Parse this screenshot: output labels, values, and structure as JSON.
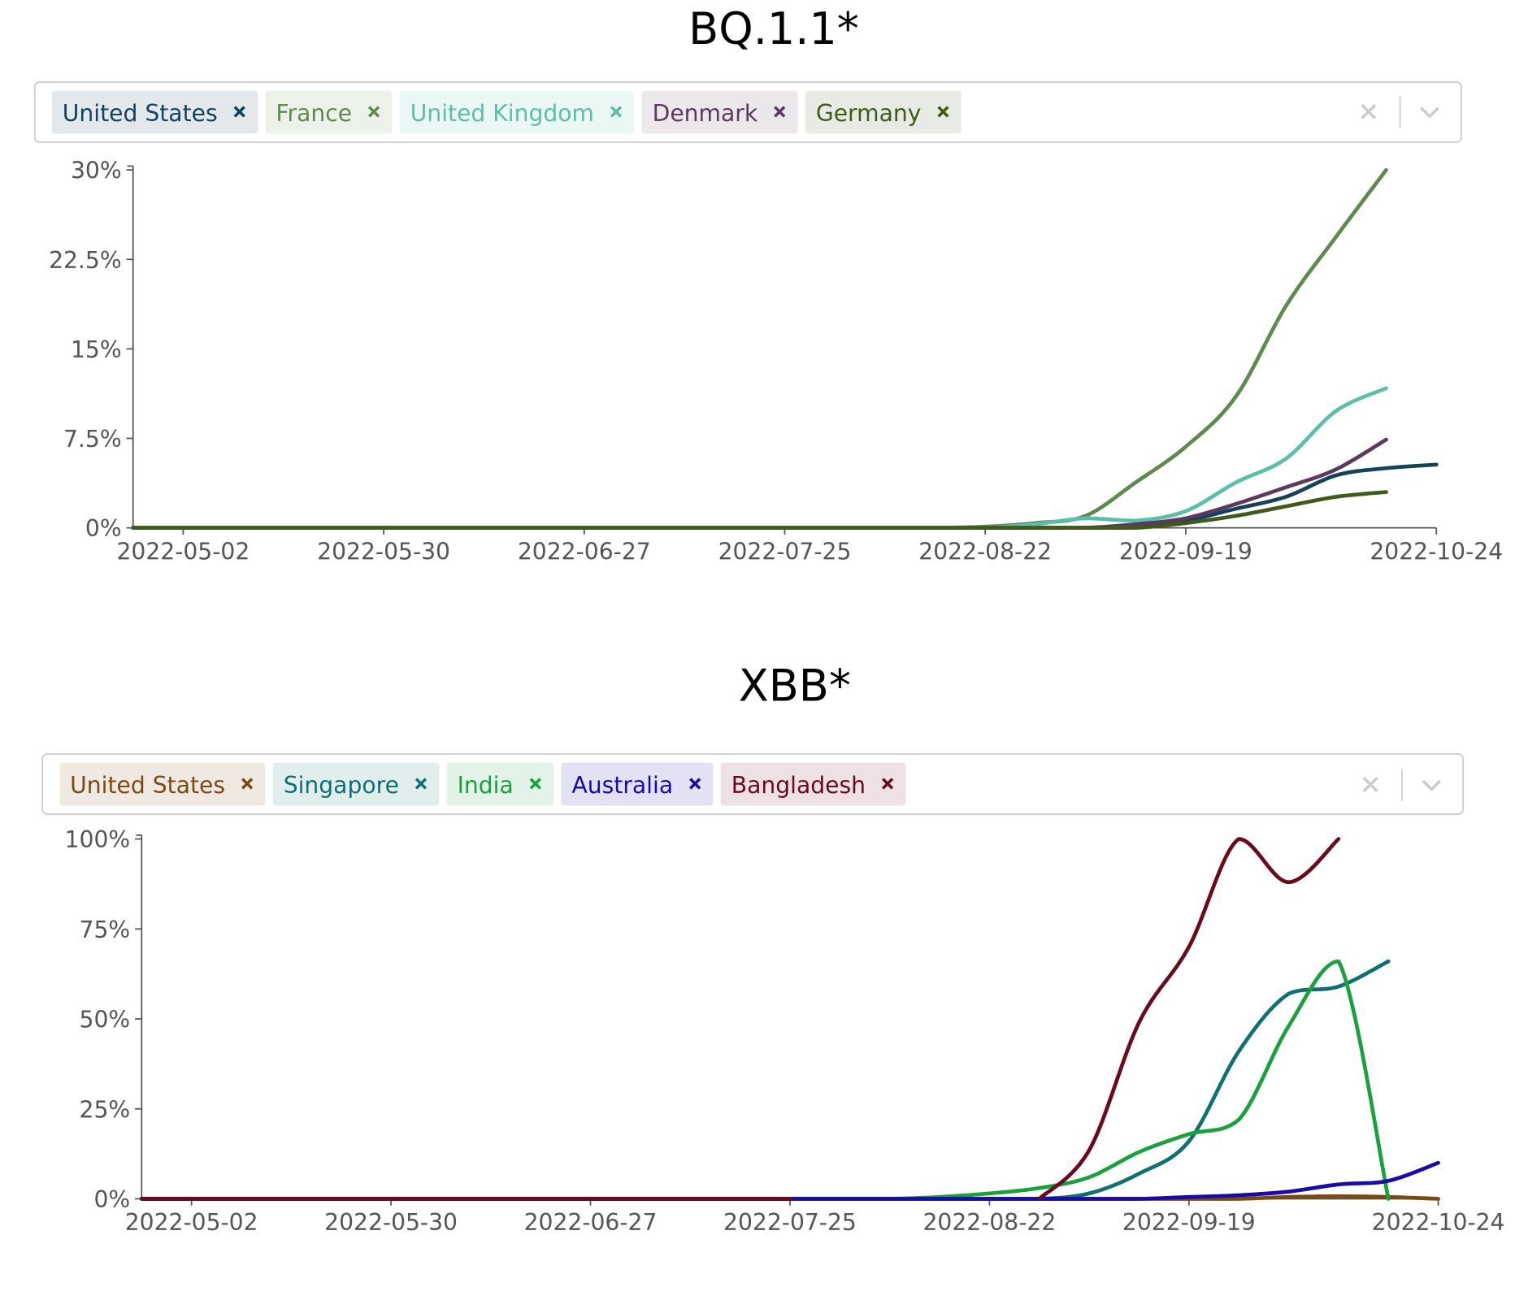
{
  "chart_data": [
    {
      "type": "line",
      "title": "BQ.1.1*",
      "x": [
        "2022-04-25",
        "2022-05-02",
        "2022-05-09",
        "2022-05-16",
        "2022-05-23",
        "2022-05-30",
        "2022-06-06",
        "2022-06-13",
        "2022-06-20",
        "2022-06-27",
        "2022-07-04",
        "2022-07-11",
        "2022-07-18",
        "2022-07-25",
        "2022-08-01",
        "2022-08-08",
        "2022-08-15",
        "2022-08-22",
        "2022-08-29",
        "2022-09-05",
        "2022-09-12",
        "2022-09-19",
        "2022-09-26",
        "2022-10-03",
        "2022-10-10",
        "2022-10-17",
        "2022-10-24"
      ],
      "series": [
        {
          "name": "United States",
          "color": "#14425a",
          "values": [
            0,
            0,
            0,
            0,
            0,
            0,
            0,
            0,
            0,
            0,
            0,
            0,
            0,
            0,
            0,
            0,
            0,
            0,
            0,
            0,
            0.2,
            0.6,
            1.6,
            2.6,
            4.4,
            5.0,
            5.3
          ]
        },
        {
          "name": "France",
          "color": "#5f8a4f",
          "values": [
            0,
            0,
            0,
            0,
            0,
            0,
            0,
            0,
            0,
            0,
            0,
            0,
            0,
            0,
            0,
            0,
            0,
            0.1,
            0.4,
            1.0,
            3.8,
            6.8,
            11,
            18.6,
            24.4,
            30,
            null
          ]
        },
        {
          "name": "United Kingdom",
          "color": "#5bbfa8",
          "values": [
            0,
            0,
            0,
            0,
            0,
            0,
            0,
            0,
            0,
            0,
            0,
            0,
            0,
            0,
            0,
            0,
            0,
            0,
            0.3,
            0.8,
            0.6,
            1.4,
            3.8,
            5.8,
            9.8,
            11.7,
            null
          ]
        },
        {
          "name": "Denmark",
          "color": "#5a3a5e",
          "values": [
            0,
            0,
            0,
            0,
            0,
            0,
            0,
            0,
            0,
            0,
            0,
            0,
            0,
            0,
            0,
            0,
            0,
            0,
            0,
            0,
            0.3,
            0.8,
            2.0,
            3.4,
            4.9,
            7.4,
            null
          ]
        },
        {
          "name": "Germany",
          "color": "#3f5a1a",
          "values": [
            0,
            0,
            0,
            0,
            0,
            0,
            0,
            0,
            0,
            0,
            0,
            0,
            0,
            0,
            0,
            0,
            0,
            0,
            0,
            0,
            0,
            0.4,
            1.0,
            1.8,
            2.6,
            3.0,
            null
          ]
        }
      ],
      "xlim": [
        "2022-04-25",
        "2022-10-24"
      ],
      "xticks": [
        "2022-05-02",
        "2022-05-30",
        "2022-06-27",
        "2022-07-25",
        "2022-08-22",
        "2022-09-19",
        "2022-10-24"
      ],
      "ylim": [
        0,
        30
      ],
      "yticks": [
        {
          "value": 0,
          "label": "0%"
        },
        {
          "value": 7.5,
          "label": "7.5%"
        },
        {
          "value": 15,
          "label": "15%"
        },
        {
          "value": 22.5,
          "label": "22.5%"
        },
        {
          "value": 30,
          "label": "30%"
        }
      ]
    },
    {
      "type": "line",
      "title": "XBB*",
      "x": [
        "2022-04-25",
        "2022-05-02",
        "2022-05-09",
        "2022-05-16",
        "2022-05-23",
        "2022-05-30",
        "2022-06-06",
        "2022-06-13",
        "2022-06-20",
        "2022-06-27",
        "2022-07-04",
        "2022-07-11",
        "2022-07-18",
        "2022-07-25",
        "2022-08-01",
        "2022-08-08",
        "2022-08-15",
        "2022-08-22",
        "2022-08-29",
        "2022-09-05",
        "2022-09-12",
        "2022-09-19",
        "2022-09-26",
        "2022-10-03",
        "2022-10-10",
        "2022-10-17",
        "2022-10-24"
      ],
      "series": [
        {
          "name": "United States",
          "color": "#7a4a14",
          "values": [
            0,
            0,
            0,
            0,
            0,
            0,
            0,
            0,
            0,
            0,
            0,
            0,
            0,
            0,
            0,
            0,
            0,
            0,
            0,
            0,
            0,
            0,
            0,
            0.5,
            0.7,
            0.5,
            0
          ]
        },
        {
          "name": "Singapore",
          "color": "#0f6f73",
          "values": [
            0,
            0,
            0,
            0,
            0,
            0,
            0,
            0,
            0,
            0,
            0,
            0,
            0,
            0,
            0,
            0,
            0,
            0,
            0,
            1.5,
            7,
            16,
            41,
            57,
            59,
            66,
            null
          ]
        },
        {
          "name": "India",
          "color": "#1aa03c",
          "values": [
            0,
            0,
            0,
            0,
            0,
            0,
            0,
            0,
            0,
            0,
            0,
            0,
            0,
            0,
            0,
            0,
            0.5,
            1.5,
            3,
            6,
            13,
            18,
            22,
            48,
            66,
            0,
            null
          ]
        },
        {
          "name": "Australia",
          "color": "#1a0aa8",
          "values": [
            0,
            0,
            0,
            0,
            0,
            0,
            0,
            0,
            0,
            0,
            0,
            0,
            0,
            0,
            0,
            0,
            0,
            0,
            0,
            0,
            0,
            0.5,
            1,
            2,
            4,
            5,
            10
          ]
        },
        {
          "name": "Bangladesh",
          "color": "#6a0a1e",
          "values": [
            0,
            0,
            0,
            0,
            0,
            0,
            0,
            0,
            0,
            0,
            0,
            0,
            0,
            0,
            null,
            null,
            null,
            null,
            0,
            13.5,
            49,
            70,
            100,
            88,
            100,
            null,
            null
          ]
        }
      ],
      "xlim": [
        "2022-04-25",
        "2022-10-24"
      ],
      "xticks": [
        "2022-05-02",
        "2022-05-30",
        "2022-06-27",
        "2022-07-25",
        "2022-08-22",
        "2022-09-19",
        "2022-10-24"
      ],
      "ylim": [
        0,
        100
      ],
      "yticks": [
        {
          "value": 0,
          "label": "0%"
        },
        {
          "value": 25,
          "label": "25%"
        },
        {
          "value": 50,
          "label": "50%"
        },
        {
          "value": 75,
          "label": "75%"
        },
        {
          "value": 100,
          "label": "100%"
        }
      ]
    }
  ]
}
